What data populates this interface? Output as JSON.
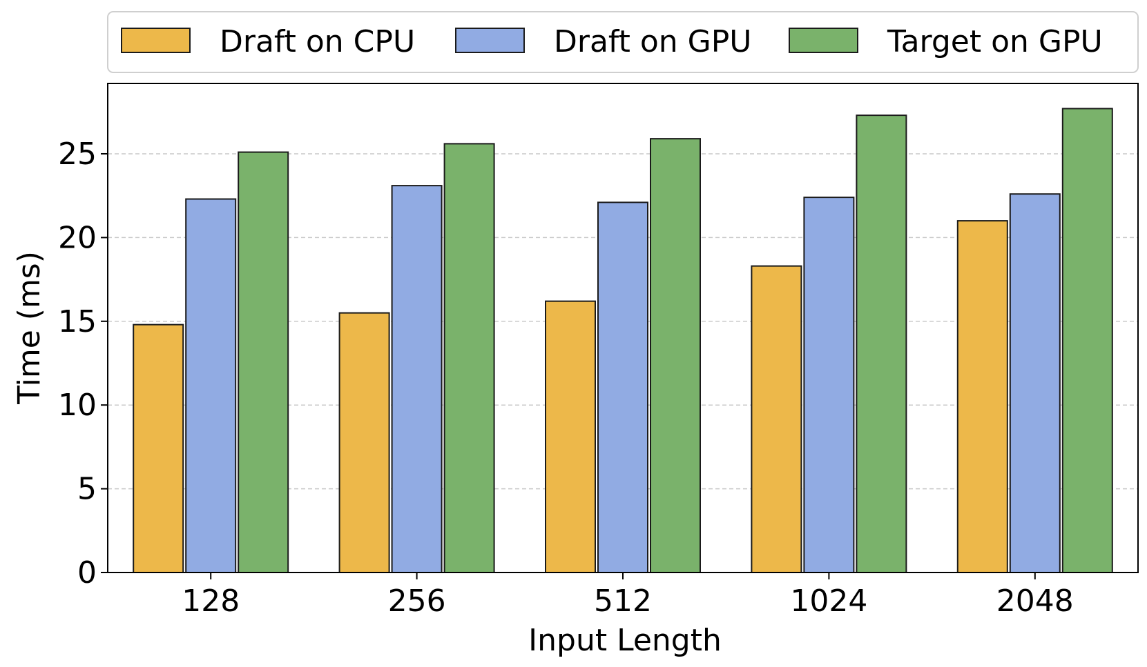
{
  "chart_data": {
    "type": "bar",
    "xlabel": "Input Length",
    "ylabel": "Time (ms)",
    "categories": [
      "128",
      "256",
      "512",
      "1024",
      "2048"
    ],
    "ylim": [
      0,
      29.2
    ],
    "yticks": [
      0,
      5,
      10,
      15,
      20,
      25
    ],
    "grid": "horizontal dashed",
    "legend_position": "top",
    "series": [
      {
        "name": "Draft on CPU",
        "color": "#EDB84A",
        "values": [
          14.8,
          15.5,
          16.2,
          18.3,
          21.0
        ]
      },
      {
        "name": "Draft on GPU",
        "color": "#91ABE3",
        "values": [
          22.3,
          23.1,
          22.1,
          22.4,
          22.6
        ]
      },
      {
        "name": "Target on GPU",
        "color": "#7AB26B",
        "values": [
          25.1,
          25.6,
          25.9,
          27.3,
          27.7
        ]
      }
    ]
  }
}
